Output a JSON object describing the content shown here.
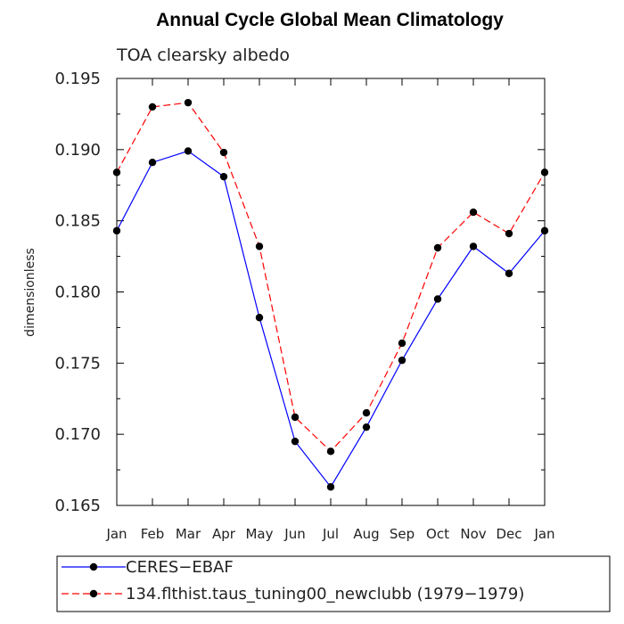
{
  "chart_data": {
    "type": "line",
    "title": "Annual Cycle Global Mean Climatology",
    "subtitle": "TOA clearsky albedo",
    "ylabel": "dimensionless",
    "xlabel": "",
    "categories": [
      "Jan",
      "Feb",
      "Mar",
      "Apr",
      "May",
      "Jun",
      "Jul",
      "Aug",
      "Sep",
      "Oct",
      "Nov",
      "Dec",
      "Jan"
    ],
    "ylim": [
      0.165,
      0.195
    ],
    "yticks": [
      "0.165",
      "0.170",
      "0.175",
      "0.180",
      "0.185",
      "0.190",
      "0.195"
    ],
    "series": [
      {
        "name": "CERES−EBAF",
        "color": "#0000ff",
        "dash": "solid",
        "values": [
          0.1843,
          0.1891,
          0.1899,
          0.1881,
          0.1782,
          0.1695,
          0.1663,
          0.1705,
          0.1752,
          0.1795,
          0.1832,
          0.1813,
          0.1843
        ]
      },
      {
        "name": "134.flthist.taus_tuning00_newclubb (1979−1979)",
        "color": "#ff0000",
        "dash": "dashed",
        "values": [
          0.1884,
          0.193,
          0.1933,
          0.1898,
          0.1832,
          0.1712,
          0.1688,
          0.1715,
          0.1764,
          0.1831,
          0.1856,
          0.1841,
          0.1884
        ]
      }
    ],
    "legend_position": "bottom",
    "grid": false
  }
}
